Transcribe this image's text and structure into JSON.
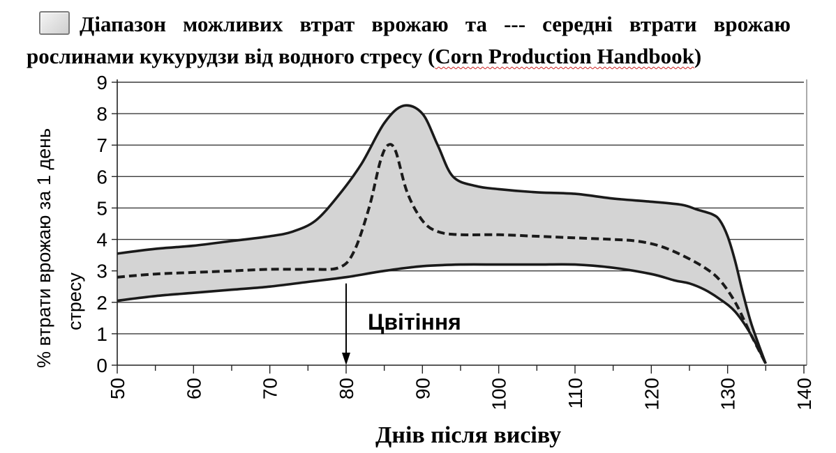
{
  "title": {
    "part1": "Діапазон можливих втрат врожаю та --- середні втрати врожаю рослинами кукурудзи від водного стресу (",
    "source": "Corn Production Handbook",
    "part2": ")"
  },
  "chart_data": {
    "type": "area",
    "xlabel": "Днів після висіву",
    "ylabel_line1": "%   втрати врожаю за 1 день",
    "ylabel_line2": "стресу",
    "xlim": [
      50,
      140
    ],
    "ylim": [
      0,
      9
    ],
    "x_ticks": [
      "50",
      "60",
      "70",
      "80",
      "90",
      "100",
      "110",
      "120",
      "130",
      "140"
    ],
    "y_ticks": [
      "0",
      "1",
      "2",
      "3",
      "4",
      "5",
      "6",
      "7",
      "8",
      "9"
    ],
    "grid": "horizontal",
    "series": [
      {
        "style": "solid",
        "x": [
          50,
          55,
          60,
          65,
          70,
          73,
          76,
          79,
          82,
          85,
          87.5,
          90,
          92,
          94,
          97,
          100,
          105,
          110,
          115,
          120,
          124,
          126,
          128,
          129,
          130,
          131,
          132,
          133,
          134,
          135
        ],
        "y": [
          3.55,
          3.7,
          3.8,
          3.95,
          4.1,
          4.25,
          4.6,
          5.4,
          6.4,
          7.7,
          8.25,
          8.0,
          7.0,
          6.0,
          5.7,
          5.6,
          5.5,
          5.45,
          5.3,
          5.2,
          5.1,
          4.95,
          4.8,
          4.6,
          4.1,
          3.3,
          2.3,
          1.4,
          0.7,
          0.05
        ]
      },
      {
        "style": "dashed",
        "x": [
          50,
          55,
          60,
          65,
          70,
          75,
          79,
          81,
          83,
          84.5,
          85.5,
          86.5,
          88,
          90,
          92,
          95,
          100,
          105,
          110,
          115,
          118,
          121,
          124,
          127,
          129,
          131,
          133,
          135
        ],
        "y": [
          2.8,
          2.9,
          2.95,
          3.0,
          3.05,
          3.05,
          3.1,
          3.6,
          5.0,
          6.5,
          7.0,
          6.8,
          5.5,
          4.6,
          4.25,
          4.15,
          4.15,
          4.1,
          4.05,
          4.0,
          3.95,
          3.8,
          3.5,
          3.1,
          2.7,
          2.0,
          1.0,
          0.05
        ]
      },
      {
        "style": "solid",
        "x": [
          50,
          55,
          60,
          65,
          70,
          75,
          80,
          85,
          90,
          95,
          100,
          105,
          110,
          115,
          120,
          123,
          125,
          127,
          129,
          131,
          133,
          135
        ],
        "y": [
          2.05,
          2.2,
          2.3,
          2.4,
          2.5,
          2.65,
          2.8,
          3.0,
          3.15,
          3.2,
          3.2,
          3.2,
          3.2,
          3.1,
          2.9,
          2.7,
          2.6,
          2.4,
          2.1,
          1.7,
          1.0,
          0.05
        ]
      }
    ],
    "annotations": [
      {
        "text": "Цвітіння",
        "x": 80,
        "y_from": 2.6,
        "y_to": 0
      }
    ]
  }
}
